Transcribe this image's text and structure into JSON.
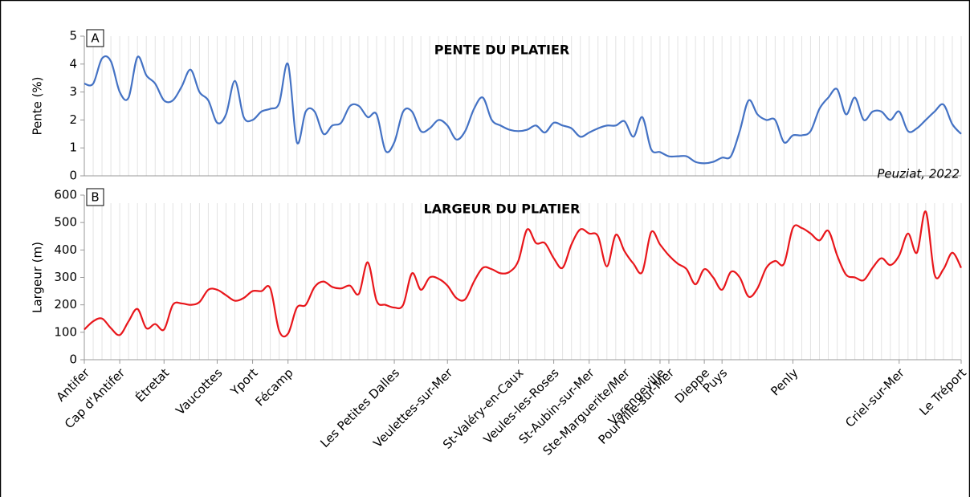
{
  "chart_data": [
    {
      "type": "line",
      "panel": "A",
      "title": "PENTE DU PLATIER",
      "y_label": "Pente (%)",
      "annotation": "Peuziat, 2022",
      "ylim": [
        0,
        5
      ],
      "yticks": [
        0,
        1,
        2,
        3,
        4,
        5
      ],
      "series": [
        {
          "name": "Pente",
          "color": "#4472c4",
          "values": [
            3.3,
            3.3,
            4.2,
            4.1,
            3.0,
            2.8,
            4.25,
            3.6,
            3.3,
            2.7,
            2.7,
            3.2,
            3.8,
            3.0,
            2.7,
            1.9,
            2.2,
            3.4,
            2.1,
            2.0,
            2.3,
            2.4,
            2.6,
            4.0,
            1.2,
            2.3,
            2.3,
            1.5,
            1.8,
            1.9,
            2.5,
            2.5,
            2.1,
            2.2,
            0.9,
            1.2,
            2.3,
            2.3,
            1.6,
            1.7,
            2.0,
            1.8,
            1.3,
            1.6,
            2.4,
            2.8,
            2.0,
            1.8,
            1.65,
            1.6,
            1.65,
            1.8,
            1.55,
            1.9,
            1.8,
            1.7,
            1.4,
            1.55,
            1.7,
            1.8,
            1.8,
            1.95,
            1.4,
            2.1,
            0.95,
            0.85,
            0.7,
            0.7,
            0.7,
            0.5,
            0.45,
            0.5,
            0.65,
            0.7,
            1.6,
            2.7,
            2.2,
            2.0,
            2.0,
            1.2,
            1.45,
            1.45,
            1.6,
            2.4,
            2.8,
            3.1,
            2.2,
            2.8,
            2.0,
            2.3,
            2.3,
            2.0,
            2.3,
            1.6,
            1.7,
            2.0,
            2.3,
            2.55,
            1.85,
            1.5
          ]
        }
      ]
    },
    {
      "type": "line",
      "panel": "B",
      "title": "LARGEUR DU PLATIER",
      "y_label": "Largeur (m)",
      "ylim": [
        0,
        600
      ],
      "yticks": [
        0,
        100,
        200,
        300,
        400,
        500,
        600
      ],
      "categories": [
        "Antifer",
        null,
        null,
        null,
        "Cap d'Antifer",
        null,
        null,
        null,
        null,
        "Étretat",
        null,
        null,
        null,
        null,
        null,
        "Vaucottes",
        null,
        null,
        null,
        "Yport",
        null,
        null,
        null,
        "Fécamp",
        null,
        null,
        null,
        null,
        null,
        null,
        null,
        null,
        null,
        null,
        null,
        "Les Petites Dalles",
        null,
        null,
        null,
        null,
        null,
        "Veulettes-sur-Mer",
        null,
        null,
        null,
        null,
        null,
        null,
        null,
        "St-Valéry-en-Caux",
        null,
        null,
        null,
        "Veules-les-Roses",
        null,
        null,
        null,
        "St-Aubin-sur-Mer",
        null,
        null,
        null,
        "Ste-Marguerite/Mer",
        null,
        null,
        null,
        "Varengeville",
        "Pourville-sur-Mer",
        null,
        null,
        null,
        "Dieppe",
        null,
        "Puys",
        null,
        null,
        null,
        null,
        null,
        null,
        null,
        "Penly",
        null,
        null,
        null,
        null,
        null,
        null,
        null,
        null,
        null,
        null,
        null,
        "Criel-sur-Mer",
        null,
        null,
        null,
        null,
        null,
        null,
        "Le Tréport"
      ],
      "series": [
        {
          "name": "Largeur",
          "color": "#e8161b",
          "values": [
            110,
            140,
            150,
            115,
            90,
            140,
            185,
            115,
            130,
            110,
            200,
            205,
            200,
            210,
            255,
            255,
            235,
            215,
            225,
            250,
            250,
            260,
            105,
            95,
            190,
            200,
            265,
            285,
            265,
            260,
            270,
            240,
            355,
            215,
            200,
            190,
            200,
            315,
            255,
            300,
            295,
            270,
            225,
            220,
            285,
            335,
            330,
            315,
            320,
            360,
            475,
            425,
            425,
            370,
            335,
            420,
            475,
            460,
            450,
            340,
            455,
            395,
            350,
            320,
            465,
            420,
            380,
            350,
            330,
            275,
            330,
            300,
            255,
            320,
            300,
            230,
            260,
            335,
            360,
            350,
            480,
            480,
            460,
            435,
            470,
            380,
            310,
            300,
            290,
            335,
            370,
            345,
            380,
            460,
            390,
            540,
            310,
            330,
            390,
            335
          ]
        }
      ]
    }
  ]
}
